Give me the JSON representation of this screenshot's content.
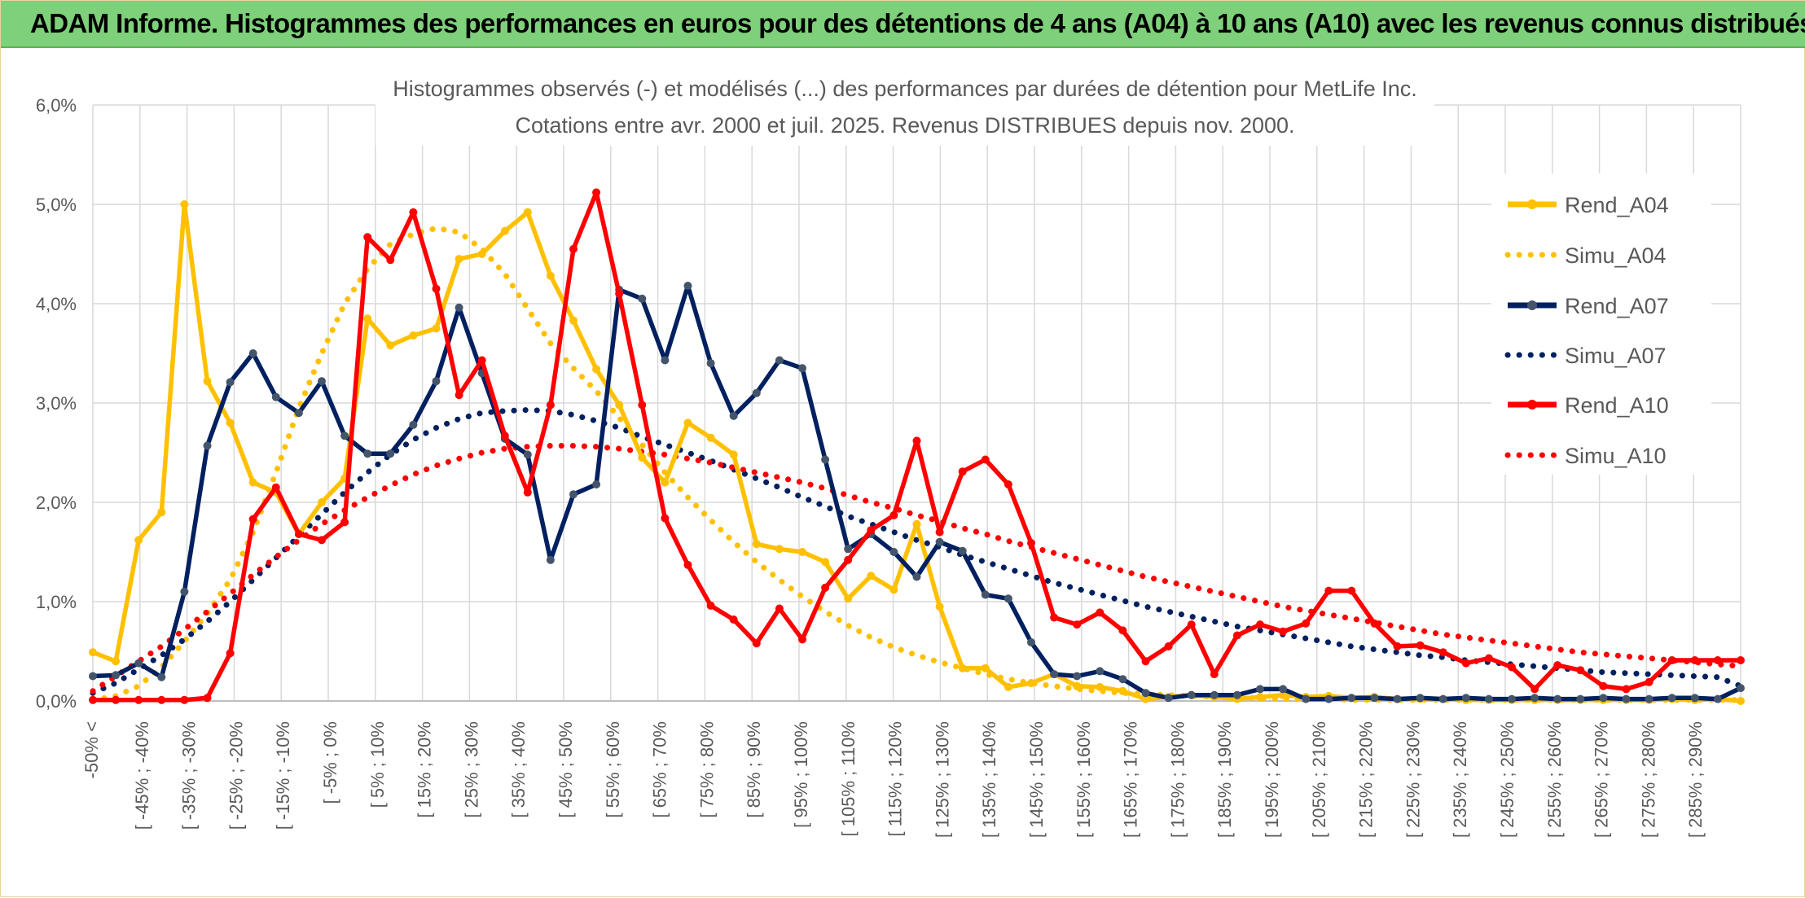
{
  "banner": {
    "title": "ADAM Informe. Histogrammes des performances en euros pour des détentions de 4 ans (A04) à 10 ans (A10) avec les revenus connus distribués"
  },
  "colors": {
    "banner": "#7ed07a",
    "A04": "#FFC000",
    "A07": "#002060",
    "A10": "#FF0000",
    "grid": "#d9d9d9",
    "text": "#595959"
  },
  "chart_data": {
    "type": "line",
    "title": "Histogrammes observés (-) et modélisés (...) des performances par durées de détention pour MetLife Inc.",
    "subtitle": "Cotations entre avr. 2000 et juil. 2025. Revenus DISTRIBUES depuis nov. 2000.",
    "xlabel": "",
    "ylabel": "",
    "ylim": [
      0,
      6
    ],
    "y_ticks": [
      "0,0%",
      "1,0%",
      "2,0%",
      "3,0%",
      "4,0%",
      "5,0%",
      "6,0%"
    ],
    "grid": true,
    "legend_position": "right",
    "x_labels": [
      "-50% <",
      "[ -45% ; -40%",
      "[ -35% ; -30%",
      "[ -25% ; -20%",
      "[ -15% ; -10%",
      "[ -5% ; 0%",
      "[ 5% ; 10%",
      "[ 15% ; 20%",
      "[ 25% ; 30%",
      "[ 35% ; 40%",
      "[ 45% ; 50%",
      "[ 55% ; 60%",
      "[ 65% ; 70%",
      "[ 75% ; 80%",
      "[ 85% ; 90%",
      "[ 95% ; 100%",
      "[ 105% ; 110%",
      "[ 115% ; 120%",
      "[ 125% ; 130%",
      "[ 135% ; 140%",
      "[ 145% ; 150%",
      "[ 155% ; 160%",
      "[ 165% ; 170%",
      "[ 175% ; 180%",
      "[ 185% ; 190%",
      "[ 195% ; 200%",
      "[ 205% ; 210%",
      "[ 215% ; 220%",
      "[ 225% ; 230%",
      "[ 235% ; 240%",
      "[ 245% ; 250%",
      "[ 255% ; 260%",
      "[ 265% ; 270%",
      "[ 275% ; 280%",
      "[ 285% ; 290%"
    ],
    "series": [
      {
        "name": "Rend_A04",
        "style": "solid",
        "color": "#FFC000",
        "values": [
          0.49,
          0.4,
          1.62,
          1.9,
          5.0,
          3.22,
          2.8,
          2.2,
          2.1,
          1.68,
          2.0,
          2.24,
          3.85,
          3.58,
          3.68,
          3.75,
          4.45,
          4.5,
          4.73,
          4.92,
          4.28,
          3.83,
          3.34,
          2.98,
          2.45,
          2.2,
          2.8,
          2.65,
          2.48,
          1.58,
          1.53,
          1.5,
          1.4,
          1.03,
          1.26,
          1.12,
          1.78,
          0.95,
          0.33,
          0.33,
          0.14,
          0.18,
          0.27,
          0.15,
          0.14,
          0.1,
          0.02,
          0.04,
          0.06,
          0.04,
          0.02,
          0.04,
          0.06,
          0.04,
          0.05,
          0.03,
          0.04,
          0.02,
          0.02,
          0.02,
          0.01,
          0.01,
          0.01,
          0.01,
          0.01,
          0.01,
          0.01,
          0.01,
          0.01,
          0.02,
          0.01,
          0.02,
          0.0
        ]
      },
      {
        "name": "Simu_A04",
        "style": "dotted",
        "color": "#FFC000",
        "values": [
          0.01,
          0.05,
          0.15,
          0.34,
          0.6,
          0.88,
          1.22,
          1.7,
          2.3,
          2.95,
          3.5,
          4.0,
          4.35,
          4.6,
          4.7,
          4.76,
          4.72,
          4.55,
          4.3,
          3.95,
          3.6,
          3.35,
          3.12,
          2.85,
          2.58,
          2.3,
          2.05,
          1.82,
          1.6,
          1.4,
          1.22,
          1.05,
          0.9,
          0.76,
          0.64,
          0.54,
          0.46,
          0.39,
          0.33,
          0.27,
          0.22,
          0.18,
          0.15,
          0.12,
          0.1,
          0.08,
          0.07,
          0.06,
          0.05,
          0.04,
          0.03,
          0.03,
          0.02,
          0.02,
          0.02,
          0.01,
          0.01,
          0.01,
          0.01,
          0.01,
          0.01,
          0.01,
          0.01,
          0.01,
          0.01,
          0.01,
          0.01,
          0.01,
          0.01,
          0.01,
          0.01,
          0.01,
          0.01
        ]
      },
      {
        "name": "Rend_A07",
        "style": "solid",
        "color": "#002060",
        "values": [
          0.25,
          0.26,
          0.38,
          0.24,
          1.1,
          2.57,
          3.21,
          3.5,
          3.06,
          2.9,
          3.22,
          2.67,
          2.49,
          2.49,
          2.78,
          3.22,
          3.96,
          3.3,
          2.64,
          2.48,
          1.42,
          2.08,
          2.18,
          4.14,
          4.05,
          3.43,
          4.18,
          3.4,
          2.87,
          3.1,
          3.43,
          3.35,
          2.43,
          1.53,
          1.68,
          1.5,
          1.25,
          1.6,
          1.51,
          1.07,
          1.03,
          0.59,
          0.27,
          0.25,
          0.3,
          0.22,
          0.08,
          0.03,
          0.06,
          0.06,
          0.06,
          0.12,
          0.12,
          0.02,
          0.02,
          0.03,
          0.03,
          0.02,
          0.03,
          0.02,
          0.03,
          0.02,
          0.02,
          0.03,
          0.02,
          0.02,
          0.03,
          0.02,
          0.02,
          0.03,
          0.03,
          0.02,
          0.13
        ]
      },
      {
        "name": "Simu_A07",
        "style": "dotted",
        "color": "#002060",
        "values": [
          0.08,
          0.18,
          0.32,
          0.46,
          0.62,
          0.8,
          1.0,
          1.22,
          1.44,
          1.66,
          1.88,
          2.1,
          2.3,
          2.48,
          2.63,
          2.75,
          2.84,
          2.9,
          2.92,
          2.93,
          2.92,
          2.88,
          2.82,
          2.75,
          2.66,
          2.58,
          2.5,
          2.42,
          2.33,
          2.24,
          2.15,
          2.05,
          1.96,
          1.86,
          1.78,
          1.7,
          1.62,
          1.55,
          1.47,
          1.4,
          1.33,
          1.26,
          1.19,
          1.13,
          1.07,
          1.01,
          0.95,
          0.9,
          0.85,
          0.8,
          0.75,
          0.71,
          0.67,
          0.63,
          0.59,
          0.55,
          0.52,
          0.49,
          0.46,
          0.44,
          0.41,
          0.39,
          0.37,
          0.35,
          0.33,
          0.31,
          0.29,
          0.28,
          0.27,
          0.26,
          0.25,
          0.24,
          0.15
        ]
      },
      {
        "name": "Rend_A10",
        "style": "solid",
        "color": "#FF0000",
        "values": [
          0.01,
          0.01,
          0.01,
          0.01,
          0.01,
          0.03,
          0.48,
          1.83,
          2.15,
          1.68,
          1.62,
          1.8,
          4.67,
          4.44,
          4.92,
          4.15,
          3.08,
          3.43,
          2.67,
          2.1,
          2.98,
          4.55,
          5.12,
          4.1,
          2.98,
          1.84,
          1.37,
          0.96,
          0.82,
          0.58,
          0.93,
          0.62,
          1.14,
          1.42,
          1.72,
          1.87,
          2.62,
          1.7,
          2.31,
          2.43,
          2.18,
          1.59,
          0.84,
          0.77,
          0.89,
          0.71,
          0.4,
          0.55,
          0.77,
          0.27,
          0.66,
          0.77,
          0.7,
          0.78,
          1.11,
          1.11,
          0.78,
          0.55,
          0.56,
          0.49,
          0.38,
          0.43,
          0.34,
          0.12,
          0.36,
          0.31,
          0.15,
          0.12,
          0.19,
          0.41,
          0.41,
          0.41,
          0.41
        ]
      },
      {
        "name": "Simu_A10",
        "style": "dotted",
        "color": "#FF0000",
        "values": [
          0.1,
          0.25,
          0.4,
          0.55,
          0.72,
          0.9,
          1.08,
          1.27,
          1.45,
          1.62,
          1.78,
          1.92,
          2.05,
          2.17,
          2.28,
          2.37,
          2.44,
          2.5,
          2.54,
          2.56,
          2.57,
          2.57,
          2.56,
          2.54,
          2.51,
          2.48,
          2.44,
          2.4,
          2.35,
          2.3,
          2.25,
          2.2,
          2.14,
          2.07,
          2.0,
          1.94,
          1.87,
          1.81,
          1.74,
          1.68,
          1.61,
          1.55,
          1.49,
          1.43,
          1.37,
          1.31,
          1.25,
          1.2,
          1.15,
          1.1,
          1.05,
          1.0,
          0.95,
          0.91,
          0.87,
          0.83,
          0.79,
          0.75,
          0.71,
          0.67,
          0.64,
          0.61,
          0.58,
          0.55,
          0.52,
          0.49,
          0.47,
          0.45,
          0.43,
          0.41,
          0.39,
          0.37,
          0.35
        ]
      }
    ]
  }
}
